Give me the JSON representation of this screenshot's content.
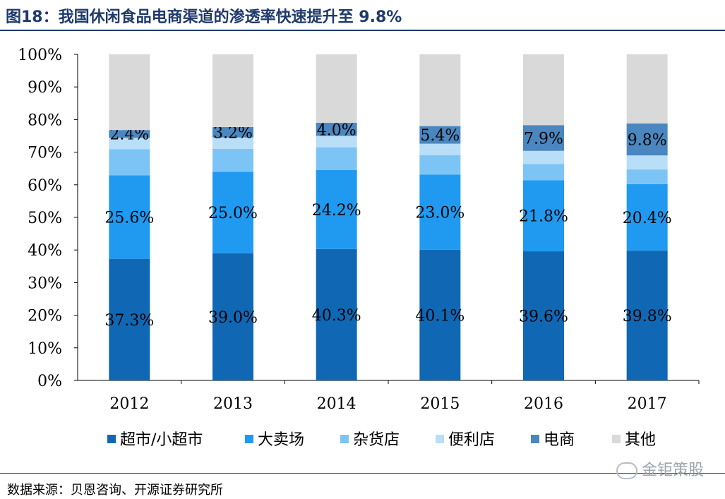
{
  "title": "图18：我国休闲食品电商渠道的渗透率快速提升至 9.8%",
  "source": "数据来源：贝恩咨询、开源证券研究所",
  "watermark": "金钜策股",
  "chart_data": {
    "type": "bar",
    "stacked": true,
    "categories": [
      "2012",
      "2013",
      "2014",
      "2015",
      "2016",
      "2017"
    ],
    "ylim": [
      0,
      100
    ],
    "y_ticks": [
      "0%",
      "10%",
      "20%",
      "30%",
      "40%",
      "50%",
      "60%",
      "70%",
      "80%",
      "90%",
      "100%"
    ],
    "grid": false,
    "legend_position": "bottom",
    "series": [
      {
        "name": "超市/小超市",
        "color": "#1068b4",
        "values": [
          37.3,
          39.0,
          40.3,
          40.1,
          39.6,
          39.8
        ],
        "labels": [
          "37.3%",
          "39.0%",
          "40.3%",
          "40.1%",
          "39.6%",
          "39.8%"
        ]
      },
      {
        "name": "大卖场",
        "color": "#1f9af0",
        "values": [
          25.6,
          25.0,
          24.2,
          23.0,
          21.8,
          20.4
        ],
        "labels": [
          "25.6%",
          "25.0%",
          "24.2%",
          "23.0%",
          "21.8%",
          "20.4%"
        ]
      },
      {
        "name": "杂货店",
        "color": "#7cc4f6",
        "values": [
          8.0,
          7.0,
          7.0,
          6.0,
          5.0,
          4.5
        ],
        "labels": null
      },
      {
        "name": "便利店",
        "color": "#b8def8",
        "values": [
          3.5,
          3.5,
          3.5,
          3.5,
          4.0,
          4.3
        ],
        "labels": null
      },
      {
        "name": "电商",
        "color": "#4a86bf",
        "values": [
          2.4,
          3.2,
          4.0,
          5.4,
          7.9,
          9.8
        ],
        "labels": [
          "2.4%",
          "3.2%",
          "4.0%",
          "5.4%",
          "7.9%",
          "9.8%"
        ]
      },
      {
        "name": "其他",
        "color": "#d9d9d9",
        "values": [
          23.2,
          22.3,
          21.0,
          22.0,
          21.7,
          21.2
        ],
        "labels": null
      }
    ]
  }
}
